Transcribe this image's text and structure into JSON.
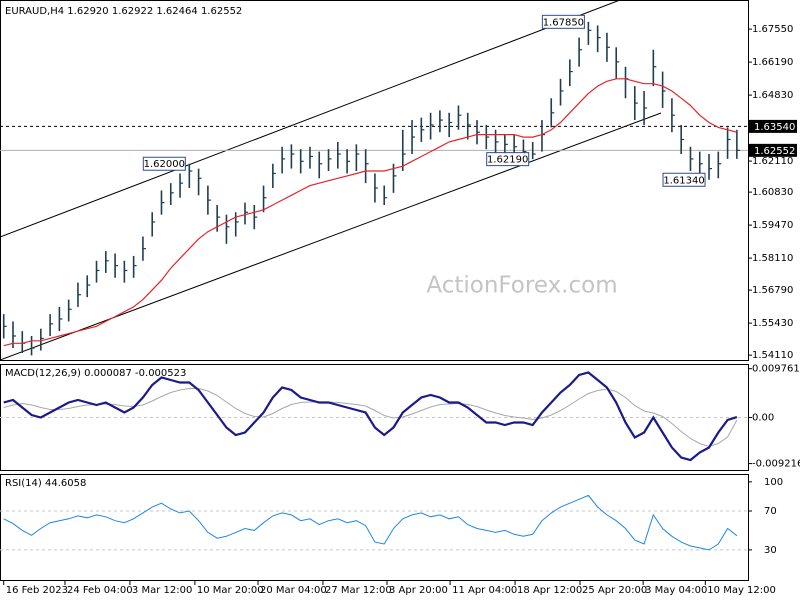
{
  "chart_data": [
    {
      "type": "hlc",
      "title": "EURAUD,H4",
      "quote": [
        "1.62920",
        "1.62922",
        "1.62464",
        "1.62552"
      ],
      "watermark": "ActionForex.com",
      "color": "#1f3f50",
      "xlim": [
        -0.4,
        80.2
      ],
      "xticks": [
        {
          "value": 0,
          "label": "16 Feb 2023"
        },
        {
          "value": 6.6,
          "label": "24 Feb 04:00"
        },
        {
          "value": 13.6,
          "label": "3 Mar 12:00"
        },
        {
          "value": 20.6,
          "label": "10 Mar 20:00"
        },
        {
          "value": 27.4,
          "label": "20 Mar 04:00"
        },
        {
          "value": 34.4,
          "label": "27 Mar 12:00"
        },
        {
          "value": 41.3,
          "label": "3 Apr 20:00"
        },
        {
          "value": 48.1,
          "label": "11 Apr 04:00"
        },
        {
          "value": 55.1,
          "label": "18 Apr 12:00"
        },
        {
          "value": 62.1,
          "label": "25 Apr 20:00"
        },
        {
          "value": 68.9,
          "label": "3 May 04:00"
        },
        {
          "value": 75.6,
          "label": "10 May 12:00"
        }
      ],
      "ylim": [
        1.5391,
        1.6875
      ],
      "yticks": [
        {
          "value": 1.6755,
          "label": "1.67550"
        },
        {
          "value": 1.6619,
          "label": "1.66190"
        },
        {
          "value": 1.6483,
          "label": "1.64830"
        },
        {
          "value": 1.6211,
          "label": "1.62110"
        },
        {
          "value": 1.6083,
          "label": "1.60830"
        },
        {
          "value": 1.5947,
          "label": "1.59470"
        },
        {
          "value": 1.5811,
          "label": "1.58110"
        },
        {
          "value": 1.5679,
          "label": "1.56790"
        },
        {
          "value": 1.5543,
          "label": "1.55430"
        },
        {
          "value": 1.5411,
          "label": "1.54110"
        }
      ],
      "level": {
        "value": 1.6354,
        "label": "1.63540"
      },
      "last_price": {
        "value": 1.62552,
        "label": "1.62552"
      },
      "annotations": [
        {
          "value": 1.62,
          "label": "1.62000"
        },
        {
          "value": 1.6219,
          "label": "1.62190"
        },
        {
          "value": 1.6785,
          "label": "1.67850"
        },
        {
          "value": 1.6134,
          "label": "1.61340"
        }
      ],
      "high": [
        1.558,
        1.555,
        1.551,
        1.549,
        1.552,
        1.558,
        1.561,
        1.564,
        1.571,
        1.574,
        1.58,
        1.584,
        1.583,
        1.58,
        1.582,
        1.59,
        1.6,
        1.609,
        1.612,
        1.616,
        1.62,
        1.618,
        1.611,
        1.603,
        1.599,
        1.6,
        1.604,
        1.603,
        1.611,
        1.62,
        1.627,
        1.628,
        1.626,
        1.627,
        1.625,
        1.626,
        1.629,
        1.626,
        1.628,
        1.626,
        1.616,
        1.611,
        1.62,
        1.634,
        1.638,
        1.639,
        1.641,
        1.642,
        1.641,
        1.644,
        1.641,
        1.638,
        1.636,
        1.634,
        1.632,
        1.632,
        1.63,
        1.629,
        1.638,
        1.647,
        1.655,
        1.663,
        1.672,
        1.6785,
        1.677,
        1.674,
        1.668,
        1.66,
        1.652,
        1.65,
        1.667,
        1.658,
        1.647,
        1.636,
        1.627,
        1.625,
        1.624,
        1.625,
        1.635,
        1.634
      ],
      "low": [
        1.548,
        1.544,
        1.542,
        1.541,
        1.543,
        1.549,
        1.551,
        1.555,
        1.561,
        1.565,
        1.571,
        1.575,
        1.573,
        1.571,
        1.573,
        1.58,
        1.59,
        1.599,
        1.603,
        1.606,
        1.61,
        1.607,
        1.599,
        1.592,
        1.587,
        1.59,
        1.595,
        1.593,
        1.6,
        1.61,
        1.616,
        1.618,
        1.616,
        1.618,
        1.614,
        1.617,
        1.618,
        1.616,
        1.617,
        1.612,
        1.604,
        1.603,
        1.608,
        1.617,
        1.624,
        1.629,
        1.63,
        1.633,
        1.631,
        1.634,
        1.63,
        1.628,
        1.626,
        1.624,
        1.623,
        1.623,
        1.6225,
        1.6219,
        1.625,
        1.635,
        1.644,
        1.652,
        1.66,
        1.669,
        1.666,
        1.662,
        1.655,
        1.647,
        1.638,
        1.636,
        1.652,
        1.643,
        1.633,
        1.624,
        1.617,
        1.615,
        1.6134,
        1.614,
        1.622,
        1.622
      ],
      "close": [
        1.553,
        1.549,
        1.546,
        1.544,
        1.548,
        1.554,
        1.556,
        1.56,
        1.566,
        1.57,
        1.576,
        1.58,
        1.578,
        1.576,
        1.578,
        1.585,
        1.596,
        1.604,
        1.608,
        1.612,
        1.617,
        1.614,
        1.605,
        1.598,
        1.594,
        1.596,
        1.6,
        1.598,
        1.606,
        1.616,
        1.622,
        1.624,
        1.621,
        1.623,
        1.62,
        1.622,
        1.624,
        1.621,
        1.624,
        1.62,
        1.61,
        1.606,
        1.615,
        1.624,
        1.631,
        1.634,
        1.636,
        1.638,
        1.637,
        1.64,
        1.636,
        1.633,
        1.631,
        1.629,
        1.628,
        1.627,
        1.625,
        1.624,
        1.632,
        1.641,
        1.65,
        1.658,
        1.667,
        1.675,
        1.672,
        1.668,
        1.662,
        1.655,
        1.645,
        1.643,
        1.66,
        1.65,
        1.64,
        1.63,
        1.622,
        1.62,
        1.618,
        1.62,
        1.63,
        1.62552
      ],
      "ma": {
        "color": "#e3242b",
        "values": [
          1.545,
          1.546,
          1.546,
          1.547,
          1.547,
          1.548,
          1.549,
          1.55,
          1.551,
          1.552,
          1.553,
          1.555,
          1.557,
          1.559,
          1.561,
          1.564,
          1.568,
          1.572,
          1.577,
          1.581,
          1.585,
          1.589,
          1.592,
          1.594,
          1.596,
          1.598,
          1.599,
          1.6,
          1.601,
          1.603,
          1.605,
          1.607,
          1.609,
          1.611,
          1.612,
          1.613,
          1.614,
          1.615,
          1.616,
          1.617,
          1.617,
          1.617,
          1.618,
          1.619,
          1.621,
          1.623,
          1.625,
          1.627,
          1.629,
          1.63,
          1.631,
          1.632,
          1.632,
          1.632,
          1.632,
          1.632,
          1.631,
          1.631,
          1.632,
          1.634,
          1.637,
          1.641,
          1.645,
          1.649,
          1.652,
          1.654,
          1.655,
          1.655,
          1.654,
          1.653,
          1.653,
          1.652,
          1.65,
          1.647,
          1.644,
          1.64,
          1.637,
          1.635,
          1.634,
          1.633
        ]
      }
    },
    {
      "type": "macd",
      "title": "MACD(12,26,9)",
      "readout": [
        "0.000087",
        "-0.000523"
      ],
      "ylim": [
        -0.0105,
        0.0105
      ],
      "yticks": [
        0.009761,
        {
          "value": 0,
          "label": "0.00"
        },
        -0.009216
      ],
      "macd": {
        "color": "#1a1a8c",
        "values": [
          0.003,
          0.0035,
          0.002,
          0.0005,
          0,
          0.001,
          0.002,
          0.003,
          0.0035,
          0.003,
          0.0025,
          0.003,
          0.002,
          0.001,
          0.002,
          0.004,
          0.0065,
          0.008,
          0.0075,
          0.007,
          0.007,
          0.0055,
          0.003,
          0.0005,
          -0.002,
          -0.0035,
          -0.003,
          -0.001,
          0.001,
          0.004,
          0.006,
          0.0055,
          0.004,
          0.0035,
          0.003,
          0.003,
          0.0025,
          0.002,
          0.0015,
          0.001,
          -0.002,
          -0.0035,
          -0.002,
          0.001,
          0.0025,
          0.004,
          0.0045,
          0.004,
          0.003,
          0.003,
          0.002,
          0.0005,
          -0.001,
          -0.001,
          -0.0015,
          -0.001,
          -0.001,
          -0.0015,
          0.001,
          0.003,
          0.005,
          0.0065,
          0.0085,
          0.009,
          0.0075,
          0.006,
          0.003,
          -0.001,
          -0.004,
          -0.003,
          0,
          -0.003,
          -0.006,
          -0.008,
          -0.0085,
          -0.007,
          -0.006,
          -0.003,
          -0.0005,
          8.7e-05
        ]
      },
      "signal": {
        "color": "#a8a8a8",
        "values": [
          0.002,
          0.0025,
          0.0028,
          0.0025,
          0.002,
          0.0016,
          0.0016,
          0.0018,
          0.0022,
          0.0025,
          0.0026,
          0.0027,
          0.0026,
          0.0023,
          0.0022,
          0.0025,
          0.0033,
          0.0042,
          0.005,
          0.0055,
          0.0058,
          0.0058,
          0.0053,
          0.0044,
          0.0031,
          0.0018,
          0.0008,
          0.0002,
          0.0001,
          0.0008,
          0.0018,
          0.0026,
          0.003,
          0.0031,
          0.0031,
          0.0031,
          0.003,
          0.0028,
          0.0026,
          0.0023,
          0.0014,
          0.0004,
          -0.0001,
          0.0001,
          0.0007,
          0.0014,
          0.0021,
          0.0026,
          0.0027,
          0.0028,
          0.0026,
          0.0022,
          0.0015,
          0.0009,
          0.0004,
          0.0001,
          -0.0001,
          -0.0004,
          -0.0001,
          0.0005,
          0.0014,
          0.0025,
          0.0037,
          0.0048,
          0.0054,
          0.0057,
          0.0052,
          0.004,
          0.0024,
          0.0013,
          0.0009,
          0.0002,
          -0.0012,
          -0.0028,
          -0.0042,
          -0.0052,
          -0.0058,
          -0.0052,
          -0.0039,
          -0.000523
        ]
      }
    },
    {
      "type": "rsi",
      "title": "RSI(14)",
      "readout": "44.6058",
      "color": "#1e88e5",
      "ylim": [
        -1,
        106
      ],
      "yticks": [
        100,
        70,
        30
      ],
      "values": [
        62,
        57,
        50,
        45,
        52,
        58,
        60,
        62,
        65,
        63,
        66,
        64,
        60,
        58,
        62,
        68,
        74,
        78,
        72,
        68,
        70,
        60,
        48,
        42,
        44,
        48,
        52,
        50,
        58,
        65,
        68,
        66,
        60,
        62,
        56,
        60,
        62,
        58,
        60,
        55,
        38,
        36,
        52,
        62,
        66,
        68,
        64,
        66,
        62,
        64,
        56,
        52,
        50,
        48,
        50,
        46,
        44,
        46,
        60,
        68,
        74,
        78,
        82,
        86,
        74,
        66,
        60,
        52,
        40,
        36,
        66,
        52,
        44,
        38,
        34,
        32,
        30,
        36,
        52,
        44.6058
      ]
    }
  ]
}
